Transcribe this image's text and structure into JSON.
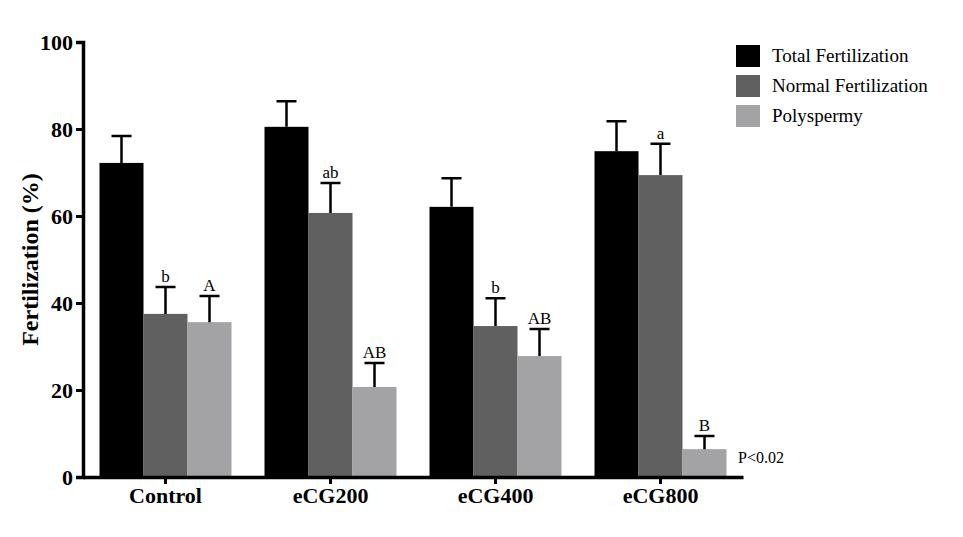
{
  "chart_data": {
    "type": "bar",
    "y_label": "Fertilization (%)",
    "annotation": "P<0.02",
    "categories": [
      "Control",
      "eCG200",
      "eCG400",
      "eCG800"
    ],
    "ylim": [
      0,
      100
    ],
    "yticks": [
      0,
      20,
      40,
      60,
      80,
      100
    ],
    "legend": "right",
    "series": [
      {
        "name": "Total Fertilization",
        "color": "#000000",
        "values": [
          72.2,
          80.5,
          62.1,
          74.9
        ],
        "errors": [
          6.2,
          5.9,
          6.6,
          6.9
        ]
      },
      {
        "name": "Normal Fertilization",
        "color": "#606060",
        "values": [
          37.5,
          60.7,
          34.7,
          69.4
        ],
        "errors": [
          6.2,
          6.9,
          6.4,
          7.2
        ],
        "letters": [
          "b",
          "ab",
          "b",
          "a"
        ]
      },
      {
        "name": "Polyspermy",
        "color": "#a3a3a5",
        "values": [
          35.6,
          20.7,
          27.8,
          6.4
        ],
        "errors": [
          6.0,
          5.5,
          6.2,
          3.0
        ],
        "letters": [
          "A",
          "AB",
          "AB",
          "B"
        ]
      }
    ]
  }
}
